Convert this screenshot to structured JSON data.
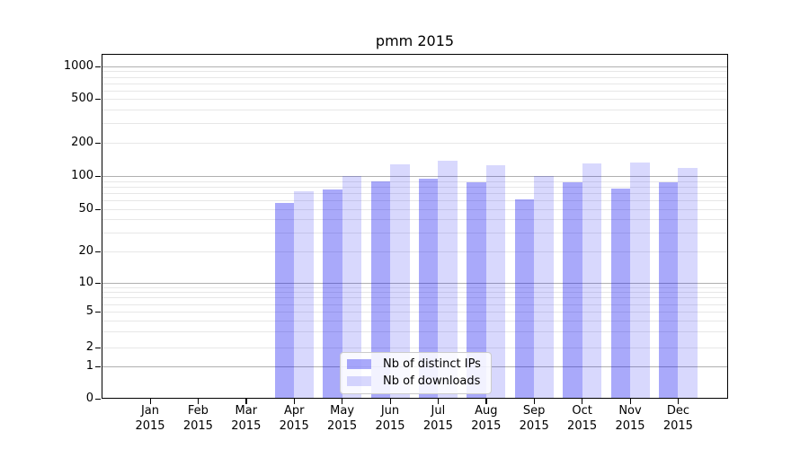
{
  "chart_data": {
    "type": "bar",
    "title": "pmm 2015",
    "y_scale": "symlog",
    "grid": true,
    "legend_position": "lower center",
    "ylim": [
      0,
      1300
    ],
    "y_ticks": [
      0,
      1,
      2,
      5,
      10,
      20,
      50,
      100,
      200,
      500,
      1000
    ],
    "categories": [
      "Jan 2015",
      "Feb 2015",
      "Mar 2015",
      "Apr 2015",
      "May 2015",
      "Jun 2015",
      "Jul 2015",
      "Aug 2015",
      "Sep 2015",
      "Oct 2015",
      "Nov 2015",
      "Dec 2015"
    ],
    "series": [
      {
        "name": "Nb of distinct IPs",
        "color": "rgba(10,10,240,0.35)",
        "values": [
          0,
          0,
          0,
          57,
          76,
          90,
          94,
          88,
          62,
          87,
          77,
          87
        ]
      },
      {
        "name": "Nb of downloads",
        "color": "rgba(10,10,240,0.16)",
        "values": [
          0,
          0,
          0,
          73,
          100,
          128,
          137,
          125,
          100,
          129,
          132,
          119
        ]
      }
    ]
  },
  "colors": {
    "major_grid": "#b0b0b0",
    "minor_grid": "#e7e7e7",
    "spine": "#000000",
    "background": "#ffffff"
  }
}
